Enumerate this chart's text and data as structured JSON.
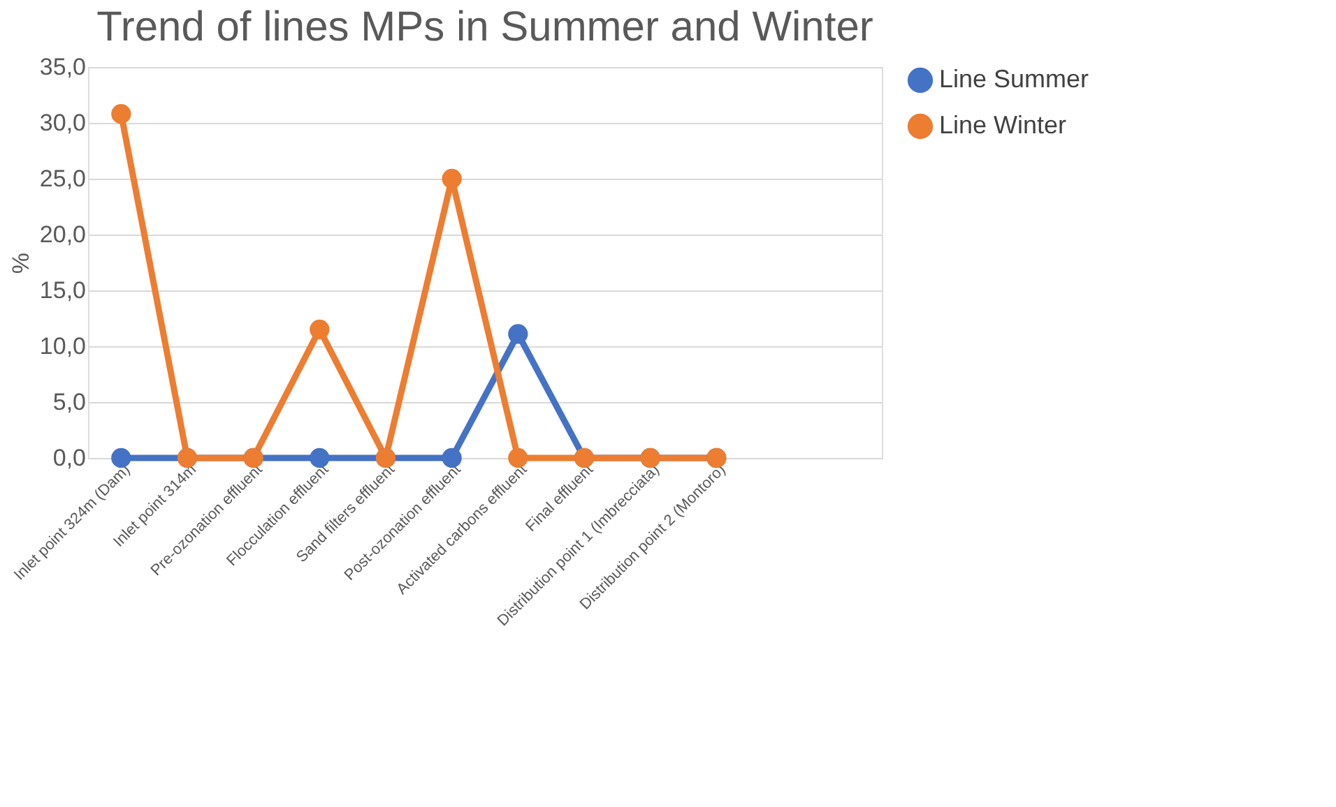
{
  "chart_data": {
    "type": "line",
    "title": "Trend of lines MPs in Summer and Winter",
    "ylabel": "%",
    "categories": [
      "Inlet point 324m (Dam)",
      "Inlet point 314m",
      "Pre-ozonation effluent",
      "Flocculation effluent",
      "Sand filters effluent",
      "Post-ozonation effluent",
      "Activated carbons effluent",
      "Final effluent",
      "Distribution point 1  (Imbrecciata)",
      "Distribution point 2  (Montoro)",
      null,
      null
    ],
    "series": [
      {
        "name": "Line Summer",
        "color": "#4472c4",
        "values": [
          0,
          0,
          0,
          0,
          0,
          0,
          11.1,
          0,
          0,
          0,
          null,
          null
        ]
      },
      {
        "name": "Line Winter",
        "color": "#ed7d31",
        "values": [
          30.8,
          0,
          0,
          11.5,
          0,
          25.0,
          0,
          0,
          0,
          0,
          null,
          null
        ]
      }
    ],
    "ylim": [
      0,
      35
    ],
    "yticks": [
      {
        "value": 0,
        "label": "0,0"
      },
      {
        "value": 5,
        "label": "5,0"
      },
      {
        "value": 10,
        "label": "10,0"
      },
      {
        "value": 15,
        "label": "15,0"
      },
      {
        "value": 20,
        "label": "20,0"
      },
      {
        "value": 25,
        "label": "25,0"
      },
      {
        "value": 30,
        "label": "30,0"
      },
      {
        "value": 35,
        "label": "35,0"
      }
    ],
    "grid": "y",
    "legend": "right",
    "marker": "circle",
    "line_style": "solid"
  }
}
